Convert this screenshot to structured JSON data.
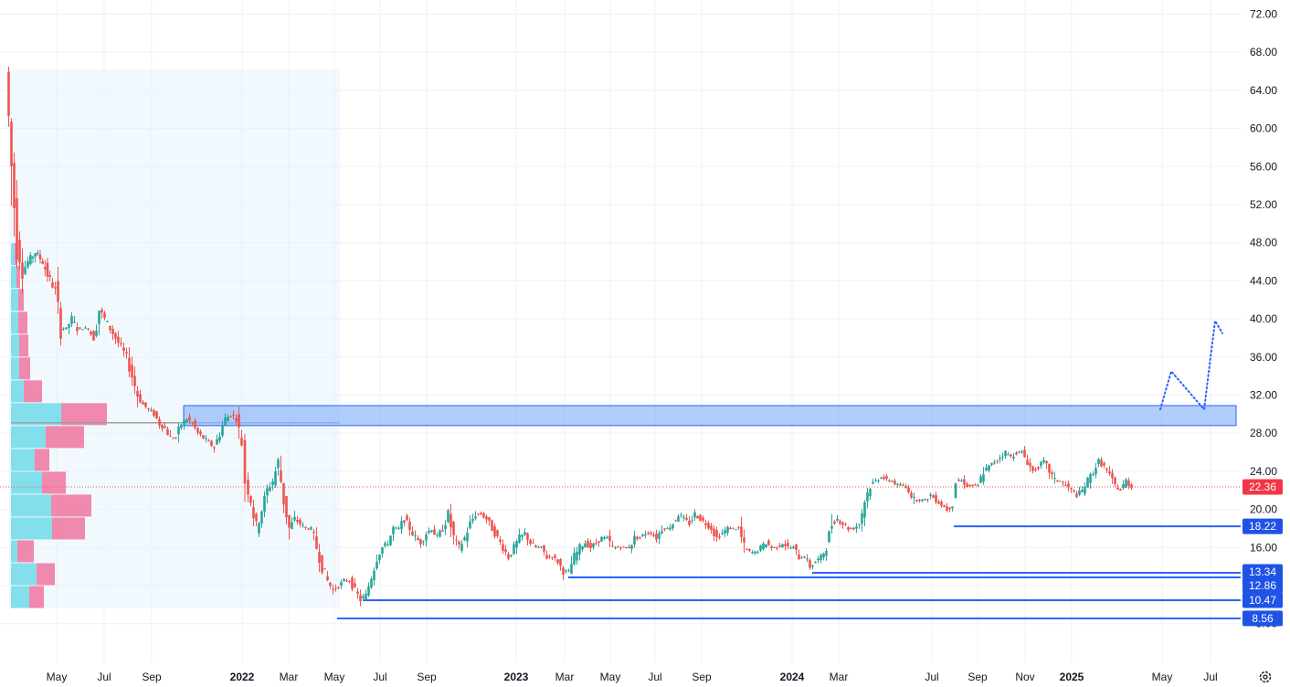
{
  "chart_data": {
    "type": "candlestick",
    "y_axis": {
      "ticks": [
        "72.00",
        "68.00",
        "64.00",
        "60.00",
        "56.00",
        "52.00",
        "48.00",
        "44.00",
        "40.00",
        "36.00",
        "32.00",
        "28.00",
        "24.00",
        "20.00",
        "16.00",
        "12.00",
        "8.00"
      ],
      "ylim": [
        4.8,
        73.6
      ]
    },
    "x_axis": {
      "ticks": [
        {
          "label": "May",
          "x": "2021-05"
        },
        {
          "label": "Jul",
          "x": "2021-07"
        },
        {
          "label": "Sep",
          "x": "2021-09"
        },
        {
          "label": "2022",
          "x": "2022-01",
          "year": true
        },
        {
          "label": "Mar",
          "x": "2022-03"
        },
        {
          "label": "May",
          "x": "2022-05"
        },
        {
          "label": "Jul",
          "x": "2022-07"
        },
        {
          "label": "Sep",
          "x": "2022-09"
        },
        {
          "label": "2023",
          "x": "2023-01",
          "year": true
        },
        {
          "label": "Mar",
          "x": "2023-03"
        },
        {
          "label": "May",
          "x": "2023-05"
        },
        {
          "label": "Jul",
          "x": "2023-07"
        },
        {
          "label": "Sep",
          "x": "2023-09"
        },
        {
          "label": "2024",
          "x": "2024-01",
          "year": true
        },
        {
          "label": "Mar",
          "x": "2024-03"
        },
        {
          "label": "Jul",
          "x": "2024-07"
        },
        {
          "label": "Sep",
          "x": "2024-09"
        },
        {
          "label": "Nov",
          "x": "2024-11"
        },
        {
          "label": "2025",
          "x": "2025-01",
          "year": true
        },
        {
          "label": "May",
          "x": "2025-05"
        },
        {
          "label": "Jul",
          "x": "2025-07"
        }
      ]
    },
    "grid": true,
    "colors": {
      "up": "#26a69a",
      "down": "#ef5350",
      "line": "#2962ff",
      "zone": "#90b8f8",
      "zone_border": "#2962ff",
      "vp_up": "#5dd5e5",
      "vp_down": "#f06292"
    },
    "price_path": [
      [
        8,
        66
      ],
      [
        14,
        56
      ],
      [
        20,
        48
      ],
      [
        26,
        45
      ],
      [
        32,
        46
      ],
      [
        40,
        47
      ],
      [
        48,
        46
      ],
      [
        56,
        44
      ],
      [
        62,
        43
      ],
      [
        68,
        39
      ],
      [
        74,
        39
      ],
      [
        80,
        40
      ],
      [
        86,
        39
      ],
      [
        92,
        39
      ],
      [
        98,
        39
      ],
      [
        104,
        38
      ],
      [
        110,
        41
      ],
      [
        116,
        40
      ],
      [
        122,
        39
      ],
      [
        128,
        38
      ],
      [
        134,
        37
      ],
      [
        140,
        36
      ],
      [
        146,
        34
      ],
      [
        152,
        32
      ],
      [
        158,
        31
      ],
      [
        164,
        30.5
      ],
      [
        170,
        30
      ],
      [
        176,
        29
      ],
      [
        182,
        28.5
      ],
      [
        188,
        27.5
      ],
      [
        194,
        27.5
      ],
      [
        200,
        29
      ],
      [
        206,
        29.5
      ],
      [
        212,
        29
      ],
      [
        218,
        28
      ],
      [
        224,
        27.5
      ],
      [
        230,
        27
      ],
      [
        236,
        26.5
      ],
      [
        242,
        28
      ],
      [
        248,
        29.5
      ],
      [
        254,
        30
      ],
      [
        260,
        29.5
      ],
      [
        266,
        27
      ],
      [
        270,
        23
      ],
      [
        276,
        21
      ],
      [
        282,
        18
      ],
      [
        288,
        20
      ],
      [
        294,
        22
      ],
      [
        300,
        23
      ],
      [
        306,
        25
      ],
      [
        312,
        21
      ],
      [
        318,
        18
      ],
      [
        324,
        19
      ],
      [
        330,
        18.5
      ],
      [
        336,
        18
      ],
      [
        342,
        18
      ],
      [
        348,
        16
      ],
      [
        354,
        14
      ],
      [
        360,
        12.5
      ],
      [
        366,
        11.5
      ],
      [
        372,
        12
      ],
      [
        378,
        12.5
      ],
      [
        384,
        12.5
      ],
      [
        390,
        11.5
      ],
      [
        396,
        10.5
      ],
      [
        402,
        11
      ],
      [
        408,
        13
      ],
      [
        414,
        15
      ],
      [
        420,
        16
      ],
      [
        426,
        16.5
      ],
      [
        432,
        18
      ],
      [
        438,
        18
      ],
      [
        444,
        19
      ],
      [
        450,
        18
      ],
      [
        456,
        17
      ],
      [
        462,
        16.5
      ],
      [
        468,
        17.5
      ],
      [
        474,
        18
      ],
      [
        480,
        17
      ],
      [
        486,
        18
      ],
      [
        492,
        19.5
      ],
      [
        498,
        17
      ],
      [
        504,
        16
      ],
      [
        510,
        17
      ],
      [
        516,
        18.5
      ],
      [
        522,
        19.5
      ],
      [
        528,
        19.5
      ],
      [
        534,
        19
      ],
      [
        540,
        18
      ],
      [
        546,
        17
      ],
      [
        552,
        16
      ],
      [
        558,
        15
      ],
      [
        564,
        16
      ],
      [
        570,
        17
      ],
      [
        576,
        17.5
      ],
      [
        582,
        16.5
      ],
      [
        588,
        16
      ],
      [
        594,
        16
      ],
      [
        600,
        15
      ],
      [
        606,
        15
      ],
      [
        612,
        14.5
      ],
      [
        618,
        13.5
      ],
      [
        624,
        13.5
      ],
      [
        630,
        15
      ],
      [
        636,
        16
      ],
      [
        642,
        16.5
      ],
      [
        648,
        16
      ],
      [
        654,
        16.5
      ],
      [
        660,
        17
      ],
      [
        666,
        17
      ],
      [
        672,
        16
      ],
      [
        678,
        16
      ],
      [
        684,
        16
      ],
      [
        690,
        16
      ],
      [
        696,
        17
      ],
      [
        702,
        17
      ],
      [
        708,
        17.5
      ],
      [
        714,
        17.5
      ],
      [
        720,
        17
      ],
      [
        726,
        18
      ],
      [
        732,
        18
      ],
      [
        738,
        18.5
      ],
      [
        744,
        19.5
      ],
      [
        750,
        19
      ],
      [
        756,
        18.5
      ],
      [
        762,
        19.5
      ],
      [
        768,
        19
      ],
      [
        774,
        18.5
      ],
      [
        780,
        18
      ],
      [
        786,
        17
      ],
      [
        792,
        17.5
      ],
      [
        798,
        18
      ],
      [
        804,
        18
      ],
      [
        810,
        18
      ],
      [
        816,
        16
      ],
      [
        822,
        15.5
      ],
      [
        828,
        15.5
      ],
      [
        834,
        16
      ],
      [
        840,
        16.5
      ],
      [
        846,
        16
      ],
      [
        852,
        16
      ],
      [
        858,
        16.5
      ],
      [
        864,
        16
      ],
      [
        870,
        16
      ],
      [
        876,
        15
      ],
      [
        882,
        15
      ],
      [
        888,
        14
      ],
      [
        894,
        14.5
      ],
      [
        900,
        15
      ],
      [
        906,
        16
      ],
      [
        912,
        18.5
      ],
      [
        918,
        19
      ],
      [
        924,
        18.5
      ],
      [
        930,
        18
      ],
      [
        936,
        18
      ],
      [
        942,
        18.5
      ],
      [
        948,
        21
      ],
      [
        954,
        22.5
      ],
      [
        960,
        23
      ],
      [
        966,
        23.5
      ],
      [
        972,
        23
      ],
      [
        978,
        23
      ],
      [
        984,
        22.5
      ],
      [
        990,
        22.5
      ],
      [
        996,
        22
      ],
      [
        1002,
        21
      ],
      [
        1008,
        21
      ],
      [
        1014,
        21
      ],
      [
        1020,
        21.5
      ],
      [
        1026,
        21
      ],
      [
        1032,
        20.5
      ],
      [
        1038,
        20
      ],
      [
        1044,
        20.5
      ],
      [
        1048,
        23
      ],
      [
        1054,
        23
      ],
      [
        1060,
        22.5
      ],
      [
        1066,
        22.5
      ],
      [
        1072,
        22.5
      ],
      [
        1078,
        24
      ],
      [
        1084,
        24.5
      ],
      [
        1090,
        25
      ],
      [
        1096,
        25.5
      ],
      [
        1102,
        26
      ],
      [
        1108,
        25.5
      ],
      [
        1114,
        26
      ],
      [
        1120,
        26
      ],
      [
        1126,
        25
      ],
      [
        1132,
        24
      ],
      [
        1138,
        24.5
      ],
      [
        1144,
        25
      ],
      [
        1150,
        24
      ],
      [
        1156,
        23
      ],
      [
        1162,
        23
      ],
      [
        1168,
        22.5
      ],
      [
        1174,
        22
      ],
      [
        1180,
        21.5
      ],
      [
        1186,
        22
      ],
      [
        1192,
        23
      ],
      [
        1198,
        24
      ],
      [
        1204,
        25
      ],
      [
        1210,
        24.5
      ],
      [
        1216,
        23.5
      ],
      [
        1222,
        22.5
      ],
      [
        1228,
        22
      ],
      [
        1234,
        23
      ],
      [
        1240,
        22.36
      ]
    ],
    "zone": {
      "low": 28.8,
      "high": 30.9
    },
    "poc_level": 29.1,
    "levels": [
      {
        "value": 18.22,
        "label": "18.22"
      },
      {
        "value": 13.34,
        "label": "13.34"
      },
      {
        "value": 12.86,
        "label": "12.86"
      },
      {
        "value": 10.47,
        "label": "10.47"
      },
      {
        "value": 8.56,
        "label": "8.56"
      }
    ],
    "last_price": {
      "value": 22.36,
      "label": "22.36"
    },
    "projection": [
      [
        1270,
        30.5
      ],
      [
        1282,
        34.5
      ],
      [
        1318,
        30.5
      ],
      [
        1330,
        39.8
      ],
      [
        1338,
        38.5
      ]
    ],
    "volume_profile": [
      {
        "low": 9.6,
        "high": 12.0,
        "up": 20,
        "down": 16
      },
      {
        "low": 12.0,
        "high": 14.4,
        "up": 28,
        "down": 20
      },
      {
        "low": 14.4,
        "high": 16.8,
        "up": 7,
        "down": 18
      },
      {
        "low": 16.8,
        "high": 19.2,
        "up": 45,
        "down": 36
      },
      {
        "low": 19.2,
        "high": 21.6,
        "up": 44,
        "down": 44
      },
      {
        "low": 21.6,
        "high": 24.0,
        "up": 34,
        "down": 26
      },
      {
        "low": 24.0,
        "high": 26.4,
        "up": 26,
        "down": 16
      },
      {
        "low": 26.4,
        "high": 28.8,
        "up": 38,
        "down": 42
      },
      {
        "low": 28.8,
        "high": 31.2,
        "up": 55,
        "down": 50
      },
      {
        "low": 31.2,
        "high": 33.6,
        "up": 14,
        "down": 20
      },
      {
        "low": 33.6,
        "high": 36.0,
        "up": 9,
        "down": 12
      },
      {
        "low": 36.0,
        "high": 38.4,
        "up": 9,
        "down": 10
      },
      {
        "low": 38.4,
        "high": 40.8,
        "up": 8,
        "down": 10
      },
      {
        "low": 40.8,
        "high": 43.2,
        "up": 8,
        "down": 6
      },
      {
        "low": 43.2,
        "high": 45.6,
        "up": 6,
        "down": 4
      },
      {
        "low": 45.6,
        "high": 48.0,
        "up": 4,
        "down": 3
      }
    ]
  }
}
